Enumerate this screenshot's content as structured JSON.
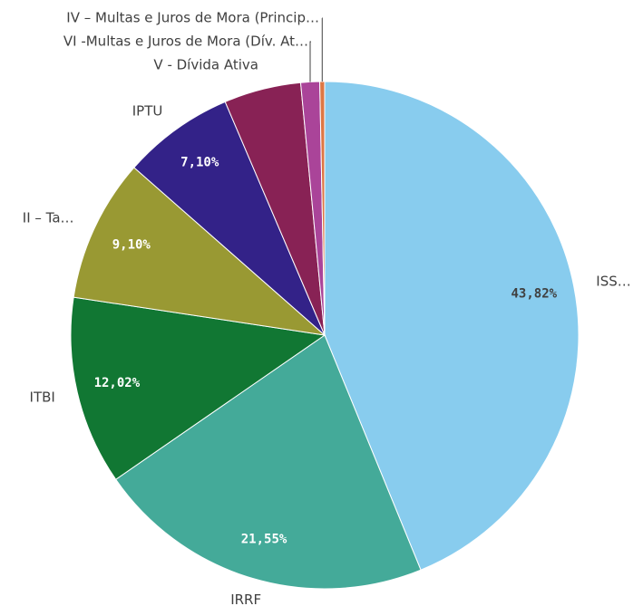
{
  "chart_data": {
    "type": "pie",
    "categories": [
      "ISS…",
      "IRRF",
      "ITBI",
      "II – Ta…",
      "IPTU",
      "V - Dívida Ativa",
      "VI -Multas e Juros de Mora (Dív. At…",
      "IV – Multas e Juros de Mora (Princip…"
    ],
    "values": [
      43.82,
      21.55,
      12.02,
      9.1,
      7.1,
      4.9,
      1.2,
      0.31
    ],
    "value_labels": [
      "43,82%",
      "21,55%",
      "12,02%",
      "9,10%",
      "7,10%",
      null,
      null,
      null
    ],
    "colors": [
      "#88ccee",
      "#44aa99",
      "#117733",
      "#999933",
      "#332288",
      "#882255",
      "#aa4499",
      "#dd7744"
    ]
  }
}
